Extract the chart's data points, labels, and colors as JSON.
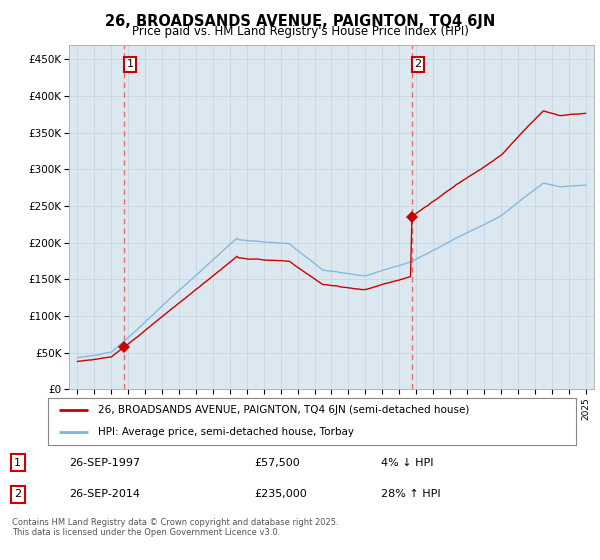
{
  "title": "26, BROADSANDS AVENUE, PAIGNTON, TQ4 6JN",
  "subtitle": "Price paid vs. HM Land Registry's House Price Index (HPI)",
  "sale1_date": 1997.74,
  "sale1_price": 57500,
  "sale2_date": 2014.74,
  "sale2_price": 235000,
  "sale1_label": "1",
  "sale2_label": "2",
  "legend_line1": "26, BROADSANDS AVENUE, PAIGNTON, TQ4 6JN (semi-detached house)",
  "legend_line2": "HPI: Average price, semi-detached house, Torbay",
  "table_row1": [
    "1",
    "26-SEP-1997",
    "£57,500",
    "4% ↓ HPI"
  ],
  "table_row2": [
    "2",
    "26-SEP-2014",
    "£235,000",
    "28% ↑ HPI"
  ],
  "footer": "Contains HM Land Registry data © Crown copyright and database right 2025.\nThis data is licensed under the Open Government Licence v3.0.",
  "xlim": [
    1994.5,
    2025.5
  ],
  "ylim": [
    0,
    470000
  ],
  "hpi_color": "#7eb5d6",
  "property_color": "#cc0000",
  "vline_color": "#e87070",
  "grid_color": "#c8d8e8",
  "background_color": "#dce8f0",
  "plot_bg_color": "#dce8f0"
}
